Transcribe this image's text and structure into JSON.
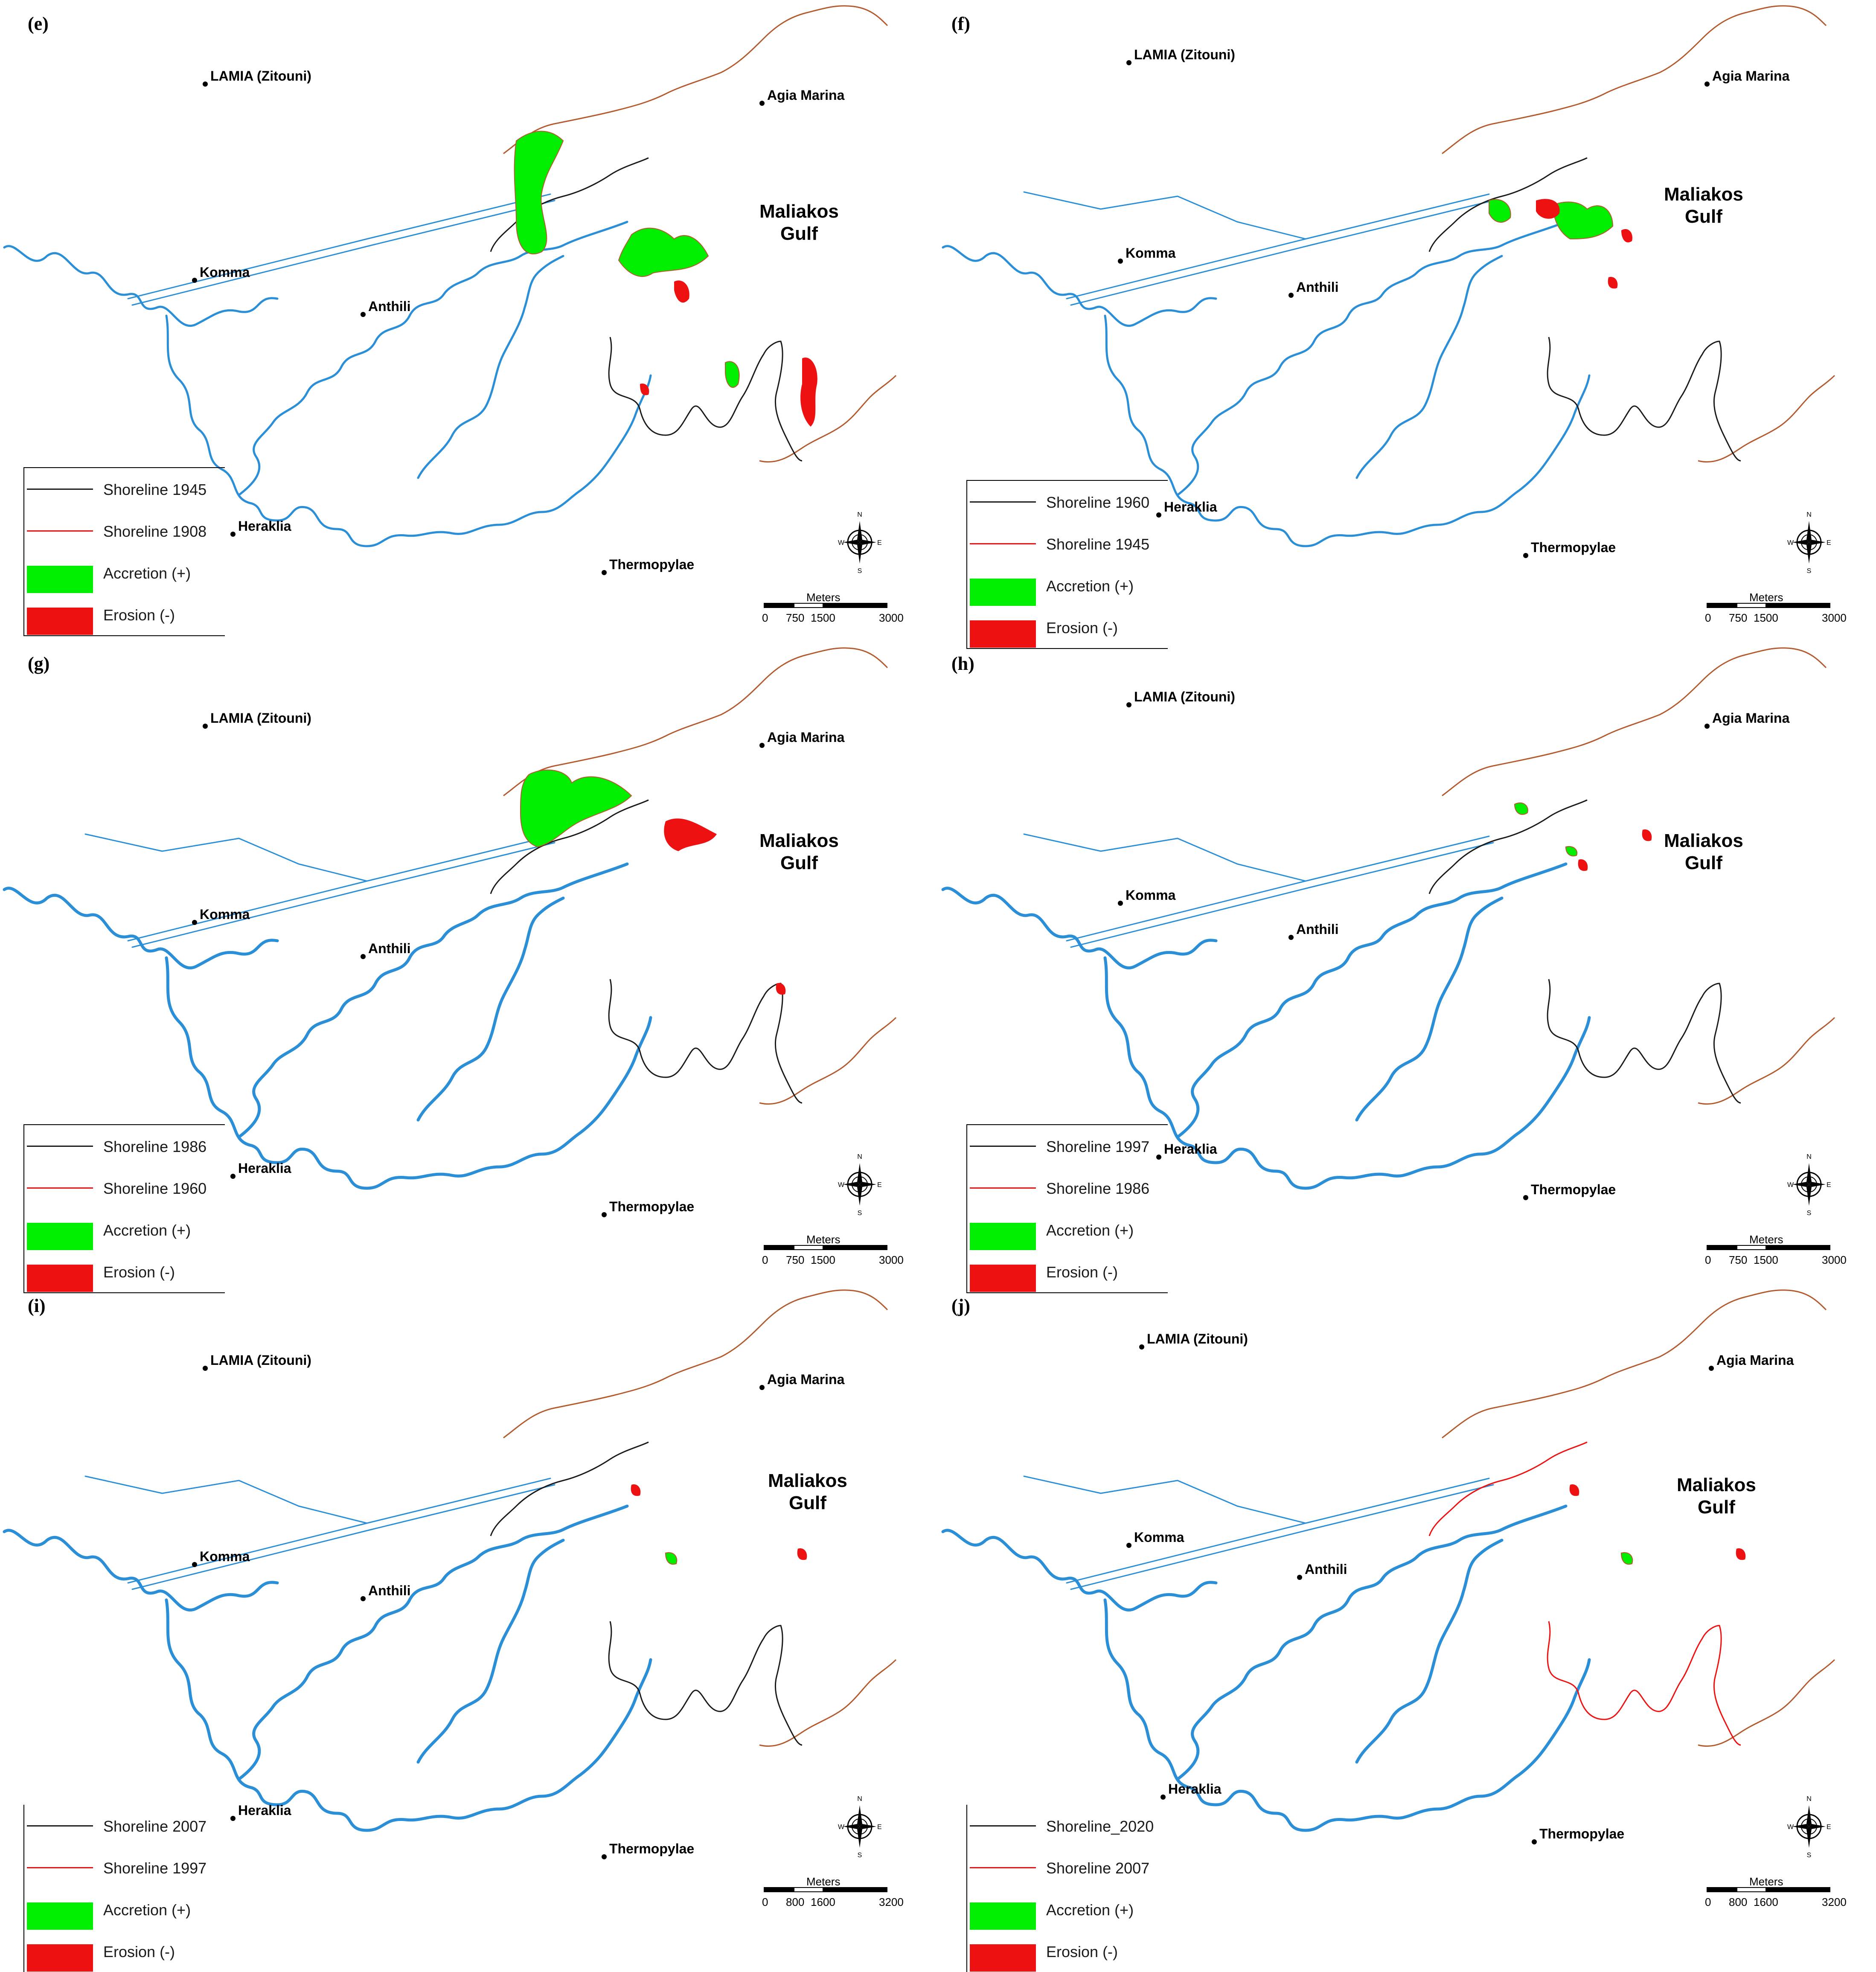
{
  "colors": {
    "accretion": "#00ee00",
    "erosion": "#ee1111",
    "river": "#2b8fd8",
    "shoreline_old": "#b35a2e",
    "shoreline_new": "#1a1a1a"
  },
  "panels": [
    {
      "label": "(e)",
      "towns": {
        "lamia": "LAMIA (Zitouni)",
        "agia": "Agia Marina",
        "komma": "Komma",
        "anthili": "Anthili",
        "heraklia": "Heraklia",
        "thermopylae": "Thermopylae"
      },
      "gulf": [
        "Maliakos",
        "Gulf"
      ],
      "legend": {
        "line1": "Shoreline 1945",
        "line2": "Shoreline 1908",
        "accretion": "Accretion (+)",
        "erosion": "Erosion (-)"
      },
      "scale": {
        "unit": "Meters",
        "ticks": [
          "0",
          "750",
          "1500",
          "3000"
        ]
      }
    },
    {
      "label": "(f)",
      "towns": {
        "lamia": "LAMIA (Zitouni)",
        "agia": "Agia Marina",
        "komma": "Komma",
        "anthili": "Anthili",
        "heraklia": "Heraklia",
        "thermopylae": "Thermopylae"
      },
      "gulf": [
        "Maliakos",
        "Gulf"
      ],
      "legend": {
        "line1": "Shoreline 1960",
        "line2": "Shoreline 1945",
        "accretion": "Accretion (+)",
        "erosion": "Erosion (-)"
      },
      "scale": {
        "unit": "Meters",
        "ticks": [
          "0",
          "750",
          "1500",
          "3000"
        ]
      }
    },
    {
      "label": "(g)",
      "towns": {
        "lamia": "LAMIA (Zitouni)",
        "agia": "Agia Marina",
        "komma": "Komma",
        "anthili": "Anthili",
        "heraklia": "Heraklia",
        "thermopylae": "Thermopylae"
      },
      "gulf": [
        "Maliakos",
        "Gulf"
      ],
      "legend": {
        "line1": "Shoreline 1986",
        "line2": "Shoreline 1960",
        "accretion": "Accretion (+)",
        "erosion": "Erosion (-)"
      },
      "scale": {
        "unit": "Meters",
        "ticks": [
          "0",
          "750",
          "1500",
          "3000"
        ]
      }
    },
    {
      "label": "(h)",
      "towns": {
        "lamia": "LAMIA (Zitouni)",
        "agia": "Agia Marina",
        "komma": "Komma",
        "anthili": "Anthili",
        "heraklia": "Heraklia",
        "thermopylae": "Thermopylae"
      },
      "gulf": [
        "Maliakos",
        "Gulf"
      ],
      "legend": {
        "line1": "Shoreline 1997",
        "line2": "Shoreline 1986",
        "accretion": "Accretion (+)",
        "erosion": "Erosion (-)"
      },
      "scale": {
        "unit": "Meters",
        "ticks": [
          "0",
          "750",
          "1500",
          "3000"
        ]
      }
    },
    {
      "label": "(i)",
      "towns": {
        "lamia": "LAMIA (Zitouni)",
        "agia": "Agia Marina",
        "komma": "Komma",
        "anthili": "Anthili",
        "heraklia": "Heraklia",
        "thermopylae": "Thermopylae"
      },
      "gulf": [
        "Maliakos",
        "Gulf"
      ],
      "legend": {
        "line1": "Shoreline 2007",
        "line2": "Shoreline 1997",
        "accretion": "Accretion (+)",
        "erosion": "Erosion (-)"
      },
      "scale": {
        "unit": "Meters",
        "ticks": [
          "0",
          "800",
          "1600",
          "3200"
        ]
      }
    },
    {
      "label": "(j)",
      "towns": {
        "lamia": "LAMIA (Zitouni)",
        "agia": "Agia Marina",
        "komma": "Komma",
        "anthili": "Anthili",
        "heraklia": "Heraklia",
        "thermopylae": "Thermopylae"
      },
      "gulf": [
        "Maliakos",
        "Gulf"
      ],
      "legend": {
        "line1": "Shoreline_2020",
        "line2": "Shoreline 2007",
        "accretion": "Accretion (+)",
        "erosion": "Erosion (-)"
      },
      "scale": {
        "unit": "Meters",
        "ticks": [
          "0",
          "800",
          "1600",
          "3200"
        ]
      }
    }
  ],
  "compass_letters": {
    "n": "N",
    "s": "S",
    "e": "E",
    "w": "W"
  }
}
